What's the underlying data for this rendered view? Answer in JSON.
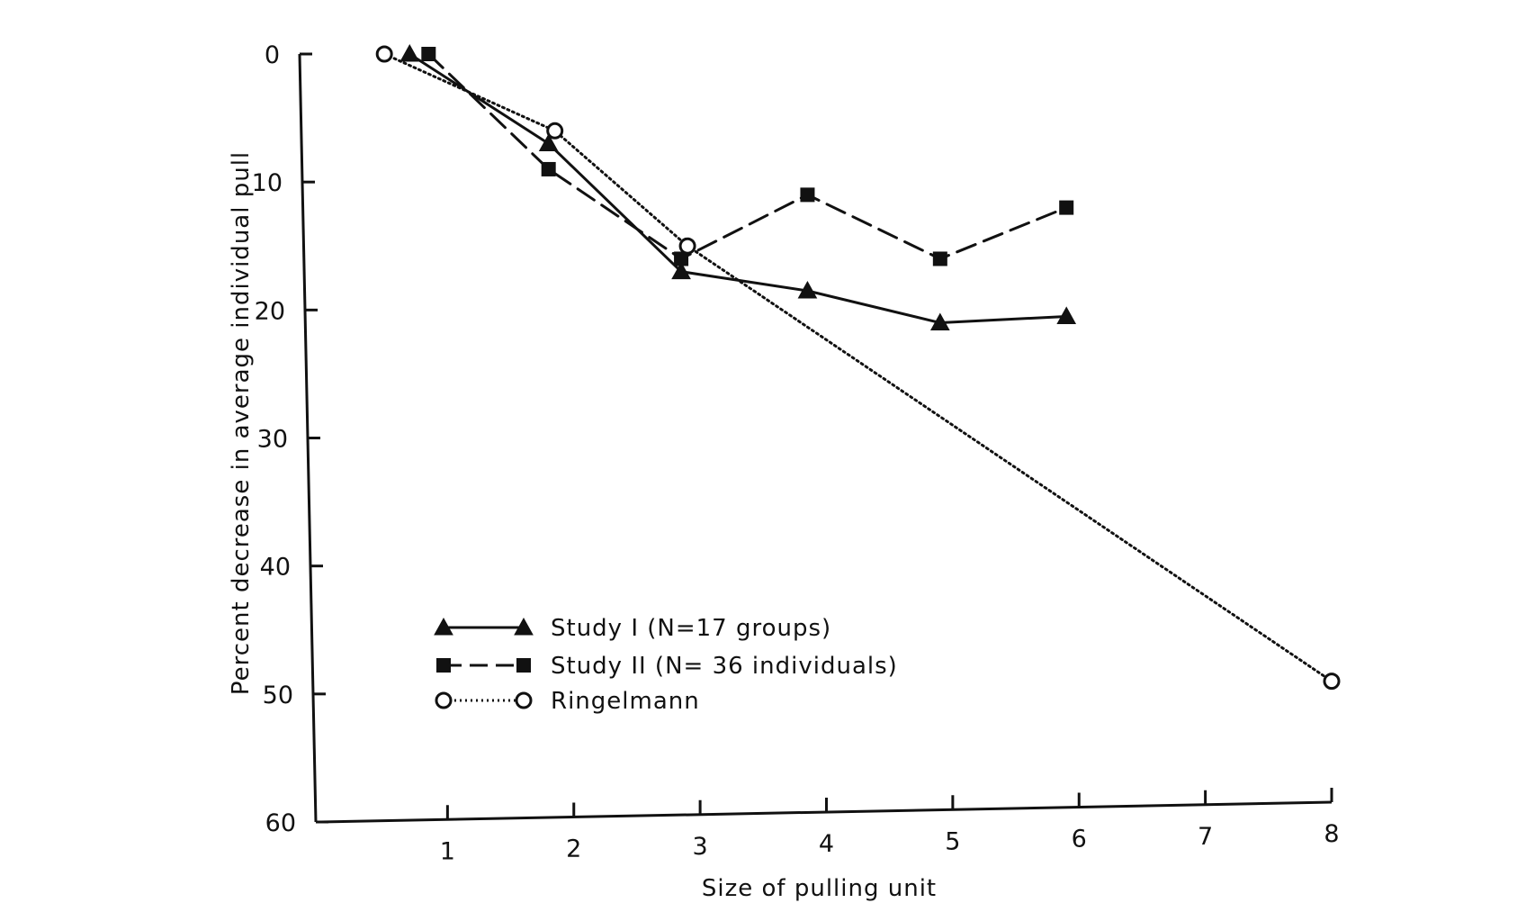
{
  "chart_data": {
    "type": "line",
    "title": "",
    "xlabel": "Size of pulling unit",
    "ylabel": "Percent decrease in average individual pull",
    "xlim": [
      0,
      8
    ],
    "ylim": [
      0,
      60
    ],
    "y_inverted": true,
    "x_ticks": [
      1,
      2,
      3,
      4,
      5,
      6,
      7,
      8
    ],
    "y_ticks": [
      0,
      10,
      20,
      30,
      40,
      50,
      60
    ],
    "grid": false,
    "legend_position": "bottom-left",
    "series": [
      {
        "name": "Study I (N=17 groups)",
        "marker": "triangle",
        "line_style": "solid",
        "color": "#111111",
        "x": [
          0.7,
          1.8,
          2.85,
          3.85,
          4.9,
          5.9
        ],
        "y": [
          0,
          7,
          17,
          18.5,
          21,
          20.5
        ]
      },
      {
        "name": "Study II (N= 36 individuals)",
        "marker": "square",
        "line_style": "dashed",
        "color": "#111111",
        "x": [
          0.85,
          1.8,
          2.85,
          3.85,
          4.9,
          5.9
        ],
        "y": [
          0,
          9,
          16,
          11,
          16,
          12
        ]
      },
      {
        "name": "Ringelmann",
        "marker": "circle",
        "line_style": "dotted",
        "color": "#111111",
        "x": [
          0.5,
          1.85,
          2.9,
          8
        ],
        "y": [
          0,
          6,
          15,
          49
        ]
      }
    ]
  }
}
